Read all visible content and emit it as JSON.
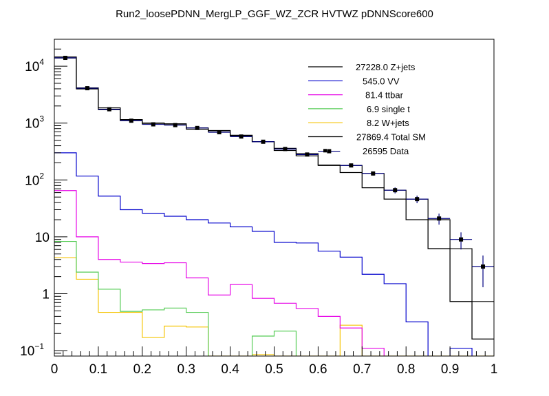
{
  "chart_data": {
    "type": "histogram",
    "title": "Run2_loosePDNN_MergLP_GGF_WZ_ZCR HVTWZ  pDNNScore600",
    "xlabel": "",
    "ylabel": "",
    "yscale": "log",
    "xlim": [
      0,
      1
    ],
    "ylim": [
      0.075,
      30000
    ],
    "grid": false,
    "legend_position": "top-right",
    "x_ticks": [
      "0",
      "0.1",
      "0.2",
      "0.3",
      "0.4",
      "0.5",
      "0.6",
      "0.7",
      "0.8",
      "0.9",
      "1"
    ],
    "y_ticks": [
      {
        "value": 10000,
        "base": "10",
        "exp": "4"
      },
      {
        "value": 1000,
        "base": "10",
        "exp": "3"
      },
      {
        "value": 100,
        "base": "10",
        "exp": "2"
      },
      {
        "value": 10,
        "base": "10",
        "exp": ""
      },
      {
        "value": 1,
        "base": "1",
        "exp": ""
      },
      {
        "value": 0.1,
        "base": "10",
        "exp": "−1"
      }
    ],
    "bin_edges": [
      0,
      0.05,
      0.1,
      0.15,
      0.2,
      0.25,
      0.3,
      0.35,
      0.4,
      0.45,
      0.5,
      0.55,
      0.6,
      0.65,
      0.7,
      0.75,
      0.8,
      0.85,
      0.9,
      0.95,
      1.0
    ],
    "series": [
      {
        "name": "Z+jets",
        "legend": "27228.0 Z+jets",
        "color": "#000000",
        "values": [
          13900,
          3980,
          1720,
          1100,
          960,
          930,
          780,
          700,
          590,
          470,
          360,
          290,
          180,
          180,
          130,
          66,
          46,
          20,
          6.2,
          0.73
        ]
      },
      {
        "name": "VV",
        "legend": "545.0 VV",
        "color": "#0000cc",
        "values": [
          300,
          117,
          52,
          30,
          26,
          23,
          20,
          17.5,
          15,
          12.5,
          8,
          7.8,
          5.6,
          4.4,
          2.2,
          1.5,
          0.32,
          0,
          0.11,
          0
        ]
      },
      {
        "name": "ttbar",
        "legend": "81.4 ttbar",
        "color": "#e600e6",
        "values": [
          65,
          10,
          4.0,
          3.6,
          3.4,
          3.5,
          1.9,
          0.95,
          1.45,
          0.83,
          0.68,
          0.55,
          0.4,
          0.25,
          0.11,
          0,
          0,
          0,
          0,
          0
        ]
      },
      {
        "name": "single t",
        "legend": "6.9 single t",
        "color": "#55cc55",
        "values": [
          8.3,
          2.4,
          1.2,
          0.49,
          0.52,
          0.56,
          0.47,
          0,
          0,
          0.18,
          0.22,
          0,
          0,
          0,
          0,
          0,
          0,
          0,
          0,
          0
        ]
      },
      {
        "name": "W+jets",
        "legend": "8.2 W+jets",
        "color": "#f5c400",
        "values": [
          4.3,
          1.8,
          0.47,
          0.47,
          0.17,
          0.27,
          0.26,
          0.075,
          0.08,
          0.085,
          0.08,
          0.075,
          0.075,
          0.28,
          0.075,
          0.075,
          0.075,
          0.075,
          0.075,
          0.075
        ]
      },
      {
        "name": "Total SM",
        "legend": "27869.4 Total SM",
        "color": "#000000",
        "values": [
          14500,
          4150,
          1850,
          1150,
          1000,
          970,
          820,
          740,
          610,
          470,
          330,
          265,
          183,
          135,
          73,
          46,
          20,
          6.2,
          0.73,
          0.16
        ]
      }
    ],
    "data_points": {
      "name": "Data",
      "legend": "26595 Data",
      "color": "#000000",
      "error_color": "#000080",
      "x": [
        0.025,
        0.075,
        0.125,
        0.175,
        0.225,
        0.275,
        0.325,
        0.375,
        0.425,
        0.475,
        0.525,
        0.575,
        0.625,
        0.675,
        0.725,
        0.775,
        0.825,
        0.875,
        0.925,
        0.975
      ],
      "y": [
        14000,
        4100,
        1750,
        1100,
        950,
        920,
        820,
        690,
        580,
        470,
        350,
        280,
        320,
        180,
        130,
        66,
        46,
        21,
        9,
        3
      ],
      "err": [
        118,
        64,
        42,
        33,
        31,
        30,
        29,
        26,
        24,
        22,
        19,
        17,
        18,
        13,
        11,
        8,
        7,
        4.6,
        3,
        1.7
      ]
    }
  }
}
